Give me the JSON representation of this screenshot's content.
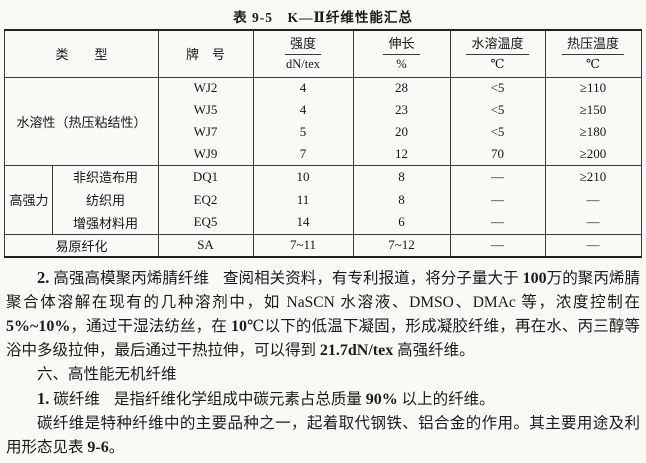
{
  "title": "表 9-5　K—Ⅱ纤维性能汇总",
  "table": {
    "headers": {
      "type": "类　　型",
      "grade": "牌　号",
      "strength": {
        "top": "强度",
        "bottom": "dN/tex"
      },
      "elongation": {
        "top": "伸长",
        "bottom": "%"
      },
      "water_temp": {
        "top": "水溶温度",
        "bottom": "℃"
      },
      "press_temp": {
        "top": "热压温度",
        "bottom": "℃"
      }
    },
    "groups": [
      {
        "type": "水溶性（热压粘结性）",
        "rows": [
          {
            "grade": "WJ2",
            "strength": "4",
            "elongation": "28",
            "water": "<5",
            "press": "≥110"
          },
          {
            "grade": "WJ5",
            "strength": "4",
            "elongation": "23",
            "water": "<5",
            "press": "≥150"
          },
          {
            "grade": "WJ7",
            "strength": "5",
            "elongation": "20",
            "water": "<5",
            "press": "≥180"
          },
          {
            "grade": "WJ9",
            "strength": "7",
            "elongation": "12",
            "water": "70",
            "press": "≥200"
          }
        ]
      },
      {
        "type": "高强力",
        "rows": [
          {
            "subtype": "非织造布用",
            "grade": "DQ1",
            "strength": "10",
            "elongation": "8",
            "water": "—",
            "press": "≥210"
          },
          {
            "subtype": "纺织用",
            "grade": "EQ2",
            "strength": "11",
            "elongation": "8",
            "water": "—",
            "press": "—"
          },
          {
            "subtype": "增强材料用",
            "grade": "EQ5",
            "strength": "14",
            "elongation": "6",
            "water": "—",
            "press": "—"
          }
        ]
      },
      {
        "type": "易原纤化",
        "rows": [
          {
            "grade": "SA",
            "strength": "7~11",
            "elongation": "7~12",
            "water": "—",
            "press": "—"
          }
        ]
      }
    ]
  },
  "paragraphs": {
    "p1": {
      "num": "2.",
      "heading": "高强高模聚丙烯腈纤维",
      "segments": [
        {
          "t": "查阅相关资料，有专利报道，将分子量大于 "
        },
        {
          "t": "100",
          "num": true
        },
        {
          "t": "万的聚丙烯腈聚合体溶解在现有的几种溶剂中，如 "
        },
        {
          "t": "NaSCN"
        },
        {
          "t": " 水溶液、"
        },
        {
          "t": "DMSO、DMAc"
        },
        {
          "t": " 等，浓度控制在 "
        },
        {
          "t": "5%~10%",
          "num": true
        },
        {
          "t": "，通过干湿法纺丝，在 "
        },
        {
          "t": "10",
          "num": true
        },
        {
          "t": "℃以下的低温下凝固，形成凝胶纤维，再在水、丙三醇等浴中多级拉伸，最后通过干热拉伸，可以得到 "
        },
        {
          "t": "21.7dN/tex",
          "num": true
        },
        {
          "t": " 高强纤维。"
        }
      ]
    },
    "section": "六、高性能无机纤维",
    "p2": {
      "num": "1.",
      "heading": "碳纤维",
      "segments": [
        {
          "t": "是指纤维化学组成中碳元素占总质量 "
        },
        {
          "t": "90%",
          "num": true
        },
        {
          "t": " 以上的纤维。"
        }
      ]
    },
    "p3": {
      "segments": [
        {
          "t": "碳纤维是特种纤维中的主要品种之一，起着取代钢铁、铝合金的作用。其主要用途及利用形态见表 "
        },
        {
          "t": "9-6",
          "num": true
        },
        {
          "t": "。"
        }
      ]
    }
  }
}
